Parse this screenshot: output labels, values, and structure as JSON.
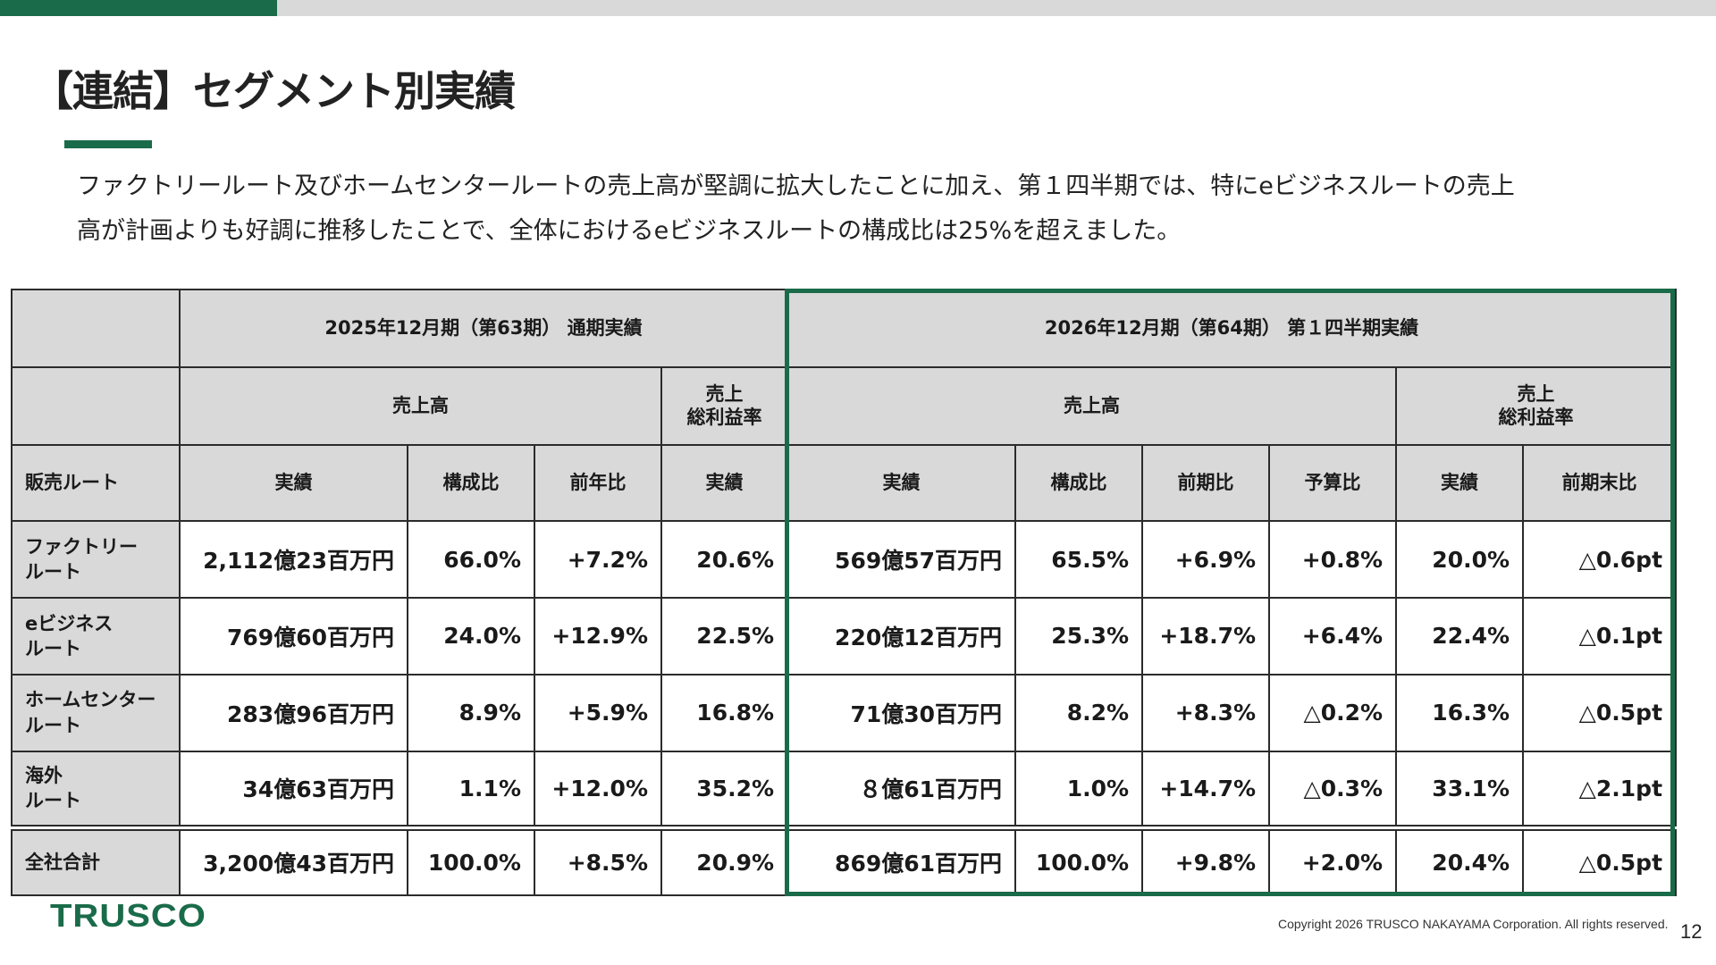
{
  "page": {
    "title": "【連結】セグメント別実績",
    "description_lines": [
      "ファクトリールート及びホームセンタールートの売上高が堅調に拡大したことに加え、第１四半期では、特にeビジネスルートの売上",
      "高が計画よりも好調に推移したことで、全体におけるeビジネスルートの構成比は25%を超えました。"
    ],
    "page_number": "12",
    "logo": "TRUSCO",
    "copyright": "Copyright 2026 TRUSCO NAKAYAMA Corporation. All rights reserved.",
    "accent_color": "#1a6b4a"
  },
  "table": {
    "period_fy2025": "2025年12月期（第63期） 通期実績",
    "period_fy2026": "2026年12月期（第64期） 第１四半期実績",
    "group_sales": "売上高",
    "group_margin_1": "売上",
    "group_margin_2": "総利益率",
    "col_route": "販売ルート",
    "col_actual": "実績",
    "col_ratio": "構成比",
    "col_yoy": "前年比",
    "col_qoq": "前期比",
    "col_budget": "予算比",
    "col_vs_prev_end": "前期末比",
    "rows": [
      {
        "label1": "ファクトリー",
        "label2": "ルート",
        "fy25_sales": "2,112億23百万円",
        "fy25_ratio": "66.0%",
        "fy25_yoy": "+7.2%",
        "fy25_margin": "20.6%",
        "q1_sales": "569億57百万円",
        "q1_ratio": "65.5%",
        "q1_qoq": "+6.9%",
        "q1_budget": "+0.8%",
        "q1_margin": "20.0%",
        "q1_margin_diff": "△0.6pt"
      },
      {
        "label1": "eビジネス",
        "label2": "ルート",
        "fy25_sales": "769億60百万円",
        "fy25_ratio": "24.0%",
        "fy25_yoy": "+12.9%",
        "fy25_margin": "22.5%",
        "q1_sales": "220億12百万円",
        "q1_ratio": "25.3%",
        "q1_qoq": "+18.7%",
        "q1_budget": "+6.4%",
        "q1_margin": "22.4%",
        "q1_margin_diff": "△0.1pt"
      },
      {
        "label1": "ホームセンター",
        "label2": "ルート",
        "fy25_sales": "283億96百万円",
        "fy25_ratio": "8.9%",
        "fy25_yoy": "+5.9%",
        "fy25_margin": "16.8%",
        "q1_sales": "71億30百万円",
        "q1_ratio": "8.2%",
        "q1_qoq": "+8.3%",
        "q1_budget": "△0.2%",
        "q1_margin": "16.3%",
        "q1_margin_diff": "△0.5pt"
      },
      {
        "label1": "海外",
        "label2": "ルート",
        "fy25_sales": "34億63百万円",
        "fy25_ratio": "1.1%",
        "fy25_yoy": "+12.0%",
        "fy25_margin": "35.2%",
        "q1_sales": "８億61百万円",
        "q1_ratio": "1.0%",
        "q1_qoq": "+14.7%",
        "q1_budget": "△0.3%",
        "q1_margin": "33.1%",
        "q1_margin_diff": "△2.1pt"
      }
    ],
    "total": {
      "label": "全社合計",
      "fy25_sales": "3,200億43百万円",
      "fy25_ratio": "100.0%",
      "fy25_yoy": "+8.5%",
      "fy25_margin": "20.9%",
      "q1_sales": "869億61百万円",
      "q1_ratio": "100.0%",
      "q1_qoq": "+9.8%",
      "q1_budget": "+2.0%",
      "q1_margin": "20.4%",
      "q1_margin_diff": "△0.5pt"
    }
  }
}
